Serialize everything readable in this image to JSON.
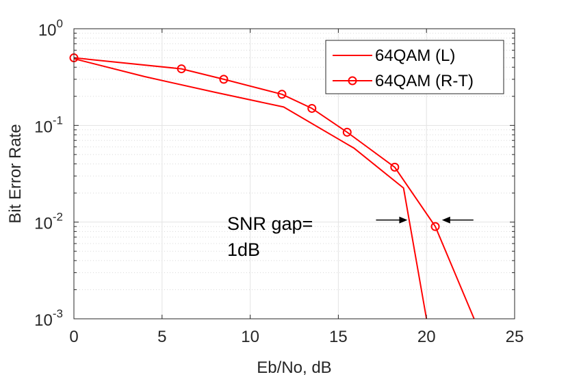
{
  "chart_data": {
    "type": "line",
    "title": "",
    "xlabel": "Eb/No, dB",
    "ylabel": "Bit Error Rate",
    "xlim": [
      0,
      25
    ],
    "ylim": [
      0.001,
      1
    ],
    "yscale": "log",
    "grid": true,
    "legend_position": "top-right",
    "x_ticks": [
      {
        "value": 0,
        "label": "0"
      },
      {
        "value": 5,
        "label": "5"
      },
      {
        "value": 10,
        "label": "10"
      },
      {
        "value": 15,
        "label": "15"
      },
      {
        "value": 20,
        "label": "20"
      },
      {
        "value": 25,
        "label": "25"
      }
    ],
    "y_ticks": [
      {
        "value": 1,
        "base": "10",
        "exp": "0"
      },
      {
        "value": 0.1,
        "base": "10",
        "exp": "-1"
      },
      {
        "value": 0.01,
        "base": "10",
        "exp": "-2"
      },
      {
        "value": 0.001,
        "base": "10",
        "exp": "-3"
      }
    ],
    "series": [
      {
        "name": "64QAM (L)",
        "color": "#ff0000",
        "marker": "none",
        "x": [
          0,
          4,
          8,
          11.9,
          15.9,
          18.7,
          20.0
        ],
        "y": [
          0.49,
          0.32,
          0.22,
          0.155,
          0.058,
          0.0225,
          0.001
        ]
      },
      {
        "name": "64QAM (R-T)",
        "color": "#ff0000",
        "marker": "circle",
        "x": [
          0,
          6.1,
          8.5,
          11.8,
          13.5,
          15.5,
          18.2,
          20.5,
          22.7
        ],
        "y": [
          0.5,
          0.385,
          0.3,
          0.21,
          0.15,
          0.085,
          0.037,
          0.009,
          0.001
        ]
      }
    ],
    "annotations": [
      {
        "line1": "SNR gap=",
        "line2": "1dB"
      }
    ],
    "gap_arrows": {
      "y": 0.01,
      "left_arrow_tip_x": 19.0,
      "right_arrow_tip_x": 20.8
    }
  }
}
